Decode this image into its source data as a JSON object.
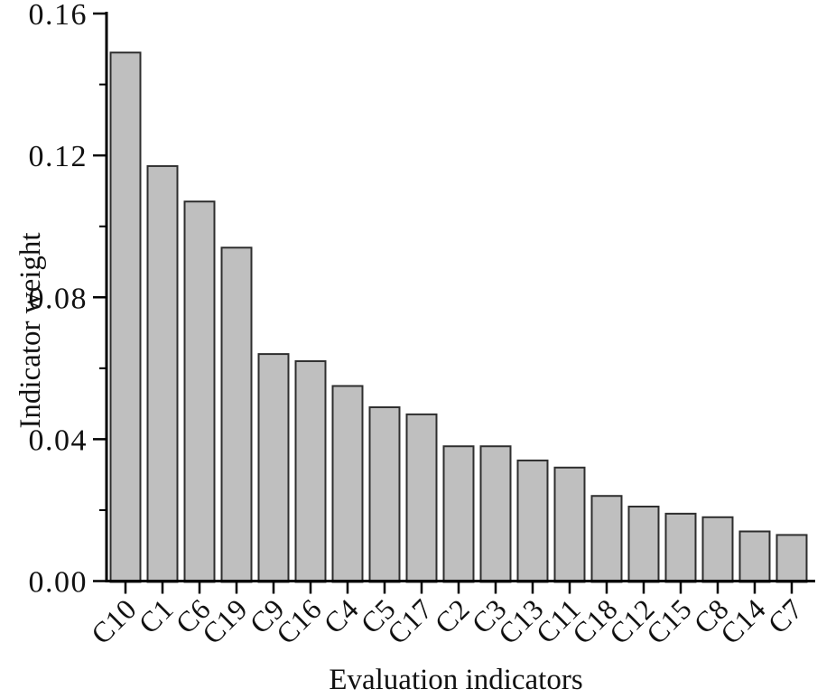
{
  "chart_data": {
    "type": "bar",
    "xlabel": "Evaluation indicators",
    "ylabel": "Indicator weight",
    "categories": [
      "C10",
      "C1",
      "C6",
      "C19",
      "C9",
      "C16",
      "C4",
      "C5",
      "C17",
      "C2",
      "C3",
      "C13",
      "C11",
      "C18",
      "C12",
      "C15",
      "C8",
      "C14",
      "C7"
    ],
    "values": [
      0.149,
      0.117,
      0.107,
      0.094,
      0.064,
      0.062,
      0.055,
      0.049,
      0.047,
      0.038,
      0.038,
      0.034,
      0.032,
      0.024,
      0.021,
      0.019,
      0.018,
      0.014,
      0.013
    ],
    "ylim": [
      0,
      0.16
    ],
    "ytick_values": [
      0,
      0.04,
      0.08,
      0.12,
      0.16
    ],
    "ytick_labels": [
      "0.00",
      "0.04",
      "0.08",
      "0.12",
      "0.16"
    ],
    "yminor_tick_values": [
      0.02,
      0.06,
      0.1,
      0.14
    ],
    "xtick_rotation_deg": 45,
    "grid": false,
    "legend": "none",
    "bar_fill": "#bfbfbf",
    "bar_stroke": "#2e2e2e",
    "axis_color": "#000000",
    "text_color": "#111111",
    "background": "#ffffff"
  }
}
